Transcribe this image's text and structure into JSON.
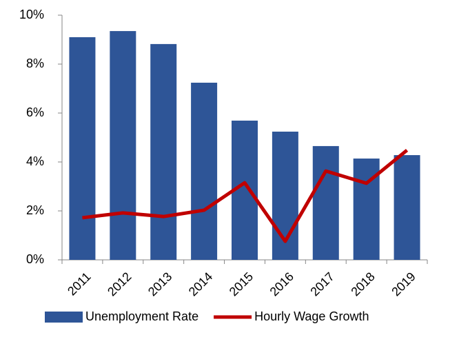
{
  "chart_data": {
    "type": "bar",
    "categories": [
      "2011",
      "2012",
      "2013",
      "2014",
      "2015",
      "2016",
      "2017",
      "2018",
      "2019"
    ],
    "series": [
      {
        "name": "Unemployment Rate",
        "color": "#2e5597",
        "type": "bar",
        "values": [
          9.1,
          9.35,
          8.82,
          7.24,
          5.69,
          5.24,
          4.65,
          4.14,
          4.28
        ]
      },
      {
        "name": "Hourly Wage Growth",
        "color": "#c00000",
        "type": "line",
        "values": [
          1.72,
          1.92,
          1.77,
          2.03,
          3.15,
          0.76,
          3.63,
          3.13,
          4.48
        ]
      }
    ],
    "ylim": [
      0,
      10
    ],
    "yticks": [
      {
        "value": 0,
        "label": "0%"
      },
      {
        "value": 2,
        "label": "2%"
      },
      {
        "value": 4,
        "label": "4%"
      },
      {
        "value": 6,
        "label": "6%"
      },
      {
        "value": 8,
        "label": "8%"
      },
      {
        "value": 10,
        "label": "10%"
      }
    ],
    "legend": "bottom"
  }
}
